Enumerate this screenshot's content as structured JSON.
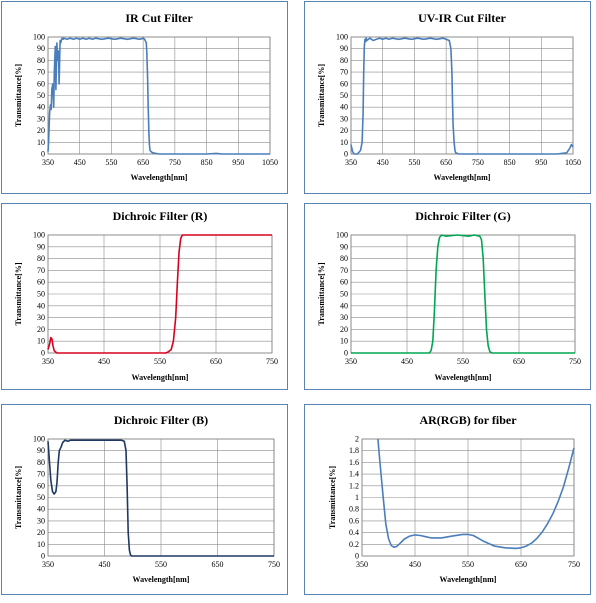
{
  "chart_data": [
    {
      "type": "line",
      "title": "IR Cut Filter",
      "xlabel": "Wavelength[nm]",
      "ylabel": "Transmittance[%]",
      "xlim": [
        350,
        1050
      ],
      "ylim": [
        0,
        100
      ],
      "xticks": [
        350,
        450,
        550,
        650,
        750,
        850,
        950,
        1050
      ],
      "xtick_labels": [
        "350",
        "450",
        "550",
        "650",
        "750",
        "850",
        "950",
        "1050"
      ],
      "yticks": [
        0,
        10,
        20,
        30,
        40,
        50,
        60,
        70,
        80,
        90,
        100
      ],
      "ytick_labels": [
        "0",
        "10",
        "20",
        "30",
        "40",
        "50",
        "60",
        "70",
        "80",
        "90",
        "100"
      ],
      "color": "#4a7ebb",
      "grid": true,
      "series": [
        {
          "x": [
            350,
            352,
            355,
            358,
            360,
            362,
            365,
            368,
            370,
            373,
            375,
            378,
            380,
            383,
            385,
            388,
            390,
            393,
            395,
            398,
            400,
            410,
            420,
            430,
            440,
            450,
            460,
            470,
            480,
            490,
            500,
            520,
            540,
            560,
            580,
            600,
            620,
            640,
            650,
            655,
            660,
            662,
            664,
            666,
            668,
            670,
            672,
            675,
            680,
            690,
            700,
            750,
            800,
            850,
            880,
            900,
            950,
            1000,
            1050
          ],
          "y": [
            2,
            10,
            35,
            42,
            38,
            55,
            60,
            40,
            70,
            92,
            55,
            95,
            80,
            88,
            60,
            97,
            95,
            98,
            99,
            98,
            99,
            98,
            99,
            98,
            99,
            98,
            99,
            98,
            99,
            98,
            99,
            98,
            99,
            98,
            99,
            98,
            99,
            98,
            99,
            98,
            95,
            85,
            65,
            40,
            18,
            7,
            3,
            2,
            1,
            0.5,
            0,
            0,
            0,
            0,
            0.5,
            0,
            0,
            0,
            0
          ]
        }
      ]
    },
    {
      "type": "line",
      "title": "UV-IR Cut Filter",
      "xlabel": "Wavelength[nm]",
      "ylabel": "Transmittance[%]",
      "xlim": [
        350,
        1050
      ],
      "ylim": [
        0,
        100
      ],
      "xticks": [
        350,
        450,
        550,
        650,
        750,
        850,
        950,
        1050
      ],
      "xtick_labels": [
        "350",
        "450",
        "550",
        "650",
        "750",
        "850",
        "950",
        "1050"
      ],
      "yticks": [
        0,
        10,
        20,
        30,
        40,
        50,
        60,
        70,
        80,
        90,
        100
      ],
      "ytick_labels": [
        "0",
        "10",
        "20",
        "30",
        "40",
        "50",
        "60",
        "70",
        "80",
        "90",
        "100"
      ],
      "color": "#4a7ebb",
      "grid": true,
      "series": [
        {
          "x": [
            350,
            355,
            360,
            370,
            380,
            385,
            388,
            390,
            392,
            394,
            396,
            398,
            400,
            405,
            410,
            420,
            430,
            440,
            450,
            460,
            470,
            480,
            500,
            520,
            540,
            560,
            580,
            600,
            620,
            640,
            650,
            660,
            665,
            668,
            670,
            672,
            675,
            678,
            680,
            690,
            700,
            750,
            800,
            850,
            900,
            950,
            1000,
            1030,
            1040,
            1045,
            1050
          ],
          "y": [
            8,
            2,
            0,
            0,
            3,
            10,
            35,
            70,
            92,
            98,
            96,
            99,
            97,
            98,
            99,
            97,
            98,
            99,
            98,
            99,
            98,
            99,
            98,
            99,
            98,
            99,
            98,
            99,
            98,
            99,
            98,
            97,
            90,
            70,
            45,
            25,
            10,
            3,
            1,
            0,
            0,
            0,
            0,
            0,
            0,
            0,
            0,
            1,
            5,
            8,
            6
          ]
        }
      ]
    },
    {
      "type": "line",
      "title": "Dichroic Filter (R)",
      "xlabel": "Wavelength[nm]",
      "ylabel": "Transmittance[%]",
      "xlim": [
        350,
        750
      ],
      "ylim": [
        0,
        100
      ],
      "xticks": [
        350,
        450,
        550,
        650,
        750
      ],
      "xtick_labels": [
        "350",
        "450",
        "550",
        "650",
        "750"
      ],
      "yticks": [
        0,
        10,
        20,
        30,
        40,
        50,
        60,
        70,
        80,
        90,
        100
      ],
      "ytick_labels": [
        "0",
        "10",
        "20",
        "30",
        "40",
        "50",
        "60",
        "70",
        "80",
        "90",
        "100"
      ],
      "color": "#d9001e",
      "grid": true,
      "series": [
        {
          "x": [
            350,
            353,
            355,
            357,
            359,
            361,
            363,
            366,
            370,
            380,
            400,
            450,
            500,
            550,
            560,
            565,
            570,
            574,
            578,
            581,
            584,
            587,
            590,
            595,
            600,
            650,
            700,
            750
          ],
          "y": [
            3,
            8,
            13,
            12,
            6,
            2,
            1,
            0,
            0,
            0,
            0,
            0,
            0,
            0,
            0,
            1,
            3,
            10,
            30,
            60,
            85,
            97,
            100,
            100,
            100,
            100,
            100,
            100
          ]
        }
      ]
    },
    {
      "type": "line",
      "title": "Dichroic Filter (G)",
      "xlabel": "Wavelength[nm]",
      "ylabel": "Transmittance[%]",
      "xlim": [
        350,
        750
      ],
      "ylim": [
        0,
        100
      ],
      "xticks": [
        350,
        450,
        550,
        650,
        750
      ],
      "xtick_labels": [
        "350",
        "450",
        "550",
        "650",
        "750"
      ],
      "yticks": [
        0,
        10,
        20,
        30,
        40,
        50,
        60,
        70,
        80,
        90,
        100
      ],
      "ytick_labels": [
        "0",
        "10",
        "20",
        "30",
        "40",
        "50",
        "60",
        "70",
        "80",
        "90",
        "100"
      ],
      "color": "#00a651",
      "grid": true,
      "series": [
        {
          "x": [
            350,
            400,
            450,
            480,
            490,
            493,
            496,
            499,
            502,
            505,
            508,
            512,
            520,
            540,
            560,
            570,
            580,
            583,
            586,
            589,
            592,
            595,
            598,
            602,
            610,
            650,
            700,
            750
          ],
          "y": [
            0,
            0,
            0,
            0,
            0,
            2,
            10,
            35,
            70,
            90,
            98,
            100,
            99,
            100,
            99,
            100,
            99,
            96,
            80,
            50,
            20,
            6,
            1,
            0,
            0,
            0,
            0,
            0
          ]
        }
      ]
    },
    {
      "type": "line",
      "title": "Dichroic Filter (B)",
      "xlabel": "Wavelength[nm]",
      "ylabel": "Transmittance[%]",
      "xlim": [
        350,
        750
      ],
      "ylim": [
        0,
        100
      ],
      "xticks": [
        350,
        450,
        550,
        650,
        750
      ],
      "xtick_labels": [
        "350",
        "450",
        "550",
        "650",
        "750"
      ],
      "yticks": [
        0,
        10,
        20,
        30,
        40,
        50,
        60,
        70,
        80,
        90,
        100
      ],
      "ytick_labels": [
        "0",
        "10",
        "20",
        "30",
        "40",
        "50",
        "60",
        "70",
        "80",
        "90",
        "100"
      ],
      "color": "#1f3864",
      "grid": true,
      "series": [
        {
          "x": [
            350,
            352,
            355,
            358,
            361,
            364,
            366,
            368,
            370,
            373,
            376,
            380,
            385,
            390,
            400,
            420,
            440,
            460,
            480,
            485,
            488,
            490,
            492,
            494,
            496,
            498,
            500,
            520,
            550,
            600,
            650,
            700,
            750
          ],
          "y": [
            98,
            85,
            65,
            55,
            53,
            55,
            63,
            80,
            90,
            93,
            97,
            99,
            98,
            99,
            99,
            99,
            99,
            99,
            99,
            98,
            90,
            60,
            20,
            5,
            1,
            0,
            0,
            0,
            0,
            0,
            0,
            0,
            0
          ]
        }
      ]
    },
    {
      "type": "line",
      "title": "AR(RGB) for fiber",
      "xlabel": "Wavelength[nm]",
      "ylabel": "Transmittance[%]",
      "xlim": [
        350,
        750
      ],
      "ylim": [
        0,
        2
      ],
      "xticks": [
        350,
        450,
        550,
        650,
        750
      ],
      "xtick_labels": [
        "350",
        "450",
        "550",
        "650",
        "750"
      ],
      "yticks": [
        0,
        0.2,
        0.4,
        0.6,
        0.8,
        1,
        1.2,
        1.4,
        1.6,
        1.8,
        2
      ],
      "ytick_labels": [
        "0",
        "0.2",
        "0.4",
        "0.6",
        "0.8",
        "1",
        "1.2",
        "1.4",
        "1.6",
        "1.8",
        "2"
      ],
      "color": "#4a7ebb",
      "grid": true,
      "series": [
        {
          "x": [
            380,
            385,
            390,
            395,
            400,
            405,
            410,
            415,
            420,
            430,
            440,
            450,
            460,
            470,
            480,
            500,
            520,
            540,
            550,
            560,
            570,
            580,
            600,
            620,
            640,
            650,
            660,
            670,
            680,
            690,
            700,
            710,
            720,
            730,
            740,
            750
          ],
          "y": [
            2,
            1.5,
            1.0,
            0.55,
            0.3,
            0.18,
            0.15,
            0.16,
            0.2,
            0.29,
            0.34,
            0.36,
            0.35,
            0.33,
            0.31,
            0.31,
            0.34,
            0.37,
            0.37,
            0.35,
            0.3,
            0.25,
            0.17,
            0.14,
            0.13,
            0.14,
            0.17,
            0.22,
            0.3,
            0.41,
            0.55,
            0.72,
            0.93,
            1.18,
            1.5,
            1.85
          ]
        }
      ]
    }
  ]
}
